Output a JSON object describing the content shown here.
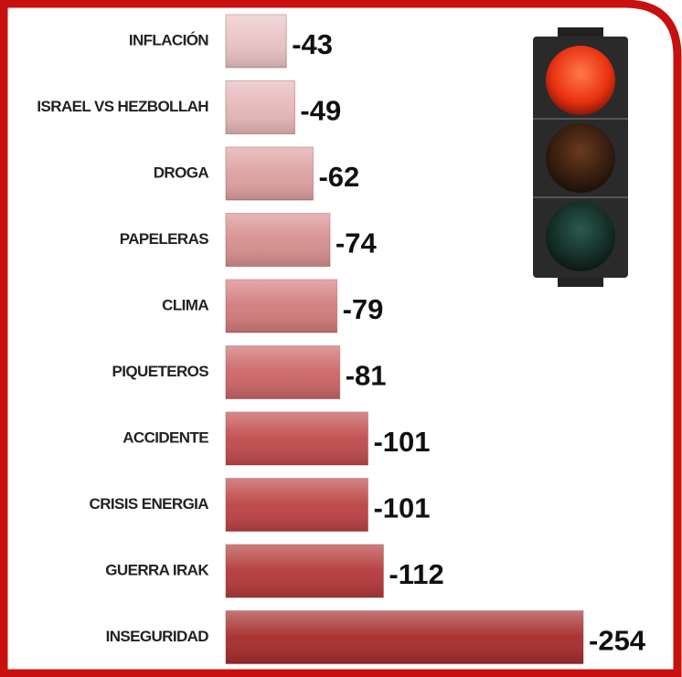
{
  "chart_data": {
    "type": "bar",
    "orientation": "horizontal",
    "categories": [
      "INFLACIÓN",
      "ISRAEL VS HEZBOLLAH",
      "DROGA",
      "PAPELERAS",
      "CLIMA",
      "PIQUETEROS",
      "ACCIDENTE",
      "CRISIS ENERGIA",
      "GUERRA IRAK",
      "INSEGURIDAD"
    ],
    "values": [
      -43,
      -49,
      -62,
      -74,
      -79,
      -81,
      -101,
      -101,
      -112,
      -254
    ],
    "colors": [
      "#e9c2c2",
      "#e6b6b6",
      "#dea0a0",
      "#d88e8e",
      "#d27a7a",
      "#cc6464",
      "#c04a4a",
      "#bb4242",
      "#b33838",
      "#a52a2a"
    ]
  }
}
